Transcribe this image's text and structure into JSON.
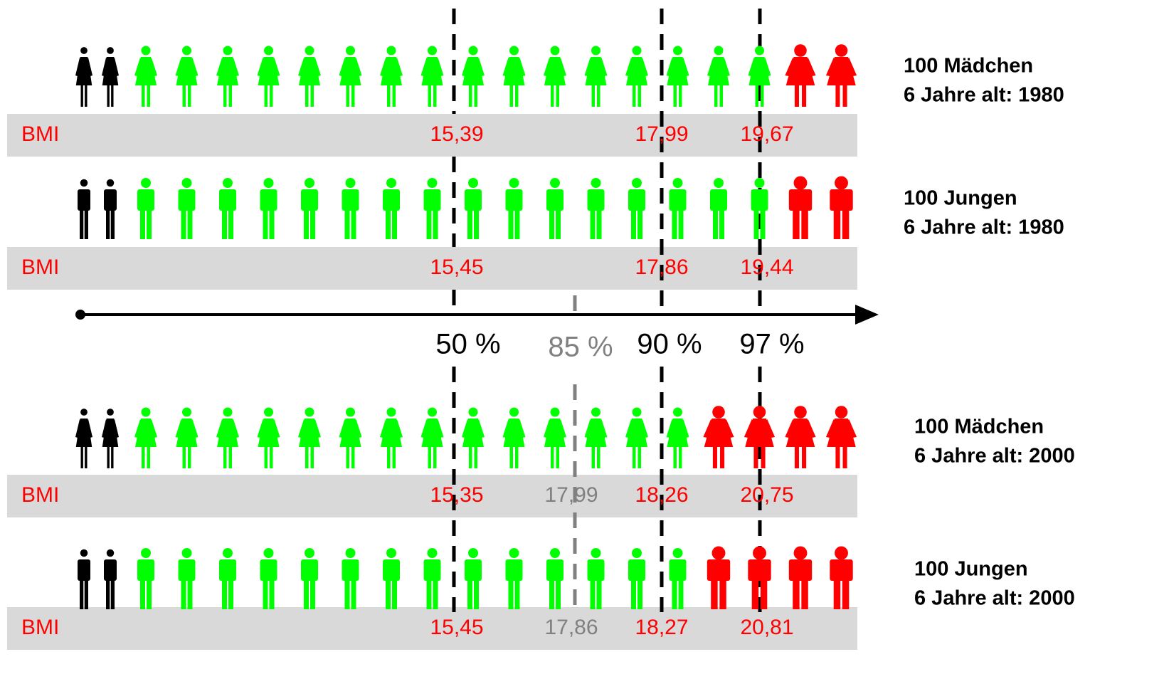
{
  "rows": [
    {
      "title": "100 Mädchen",
      "subtitle": "6 Jahre alt: 1980",
      "bmi_label": "BMI",
      "values": [
        "15,39",
        "17,99",
        "19,67"
      ]
    },
    {
      "title": "100 Jungen",
      "subtitle": "6 Jahre alt: 1980",
      "bmi_label": "BMI",
      "values": [
        "15,45",
        "17,86",
        "19,44"
      ]
    },
    {
      "title": "100 Mädchen",
      "subtitle": "6 Jahre alt: 2000",
      "bmi_label": "BMI",
      "values": [
        "15,35",
        "17,99",
        "18,26",
        "20,75"
      ]
    },
    {
      "title": "100 Jungen",
      "subtitle": "6 Jahre alt: 2000",
      "bmi_label": "BMI",
      "values": [
        "15,45",
        "17,86",
        "18,27",
        "20,81"
      ]
    }
  ],
  "percentiles": [
    "50 %",
    "85 %",
    "90 %",
    "97 %"
  ]
}
